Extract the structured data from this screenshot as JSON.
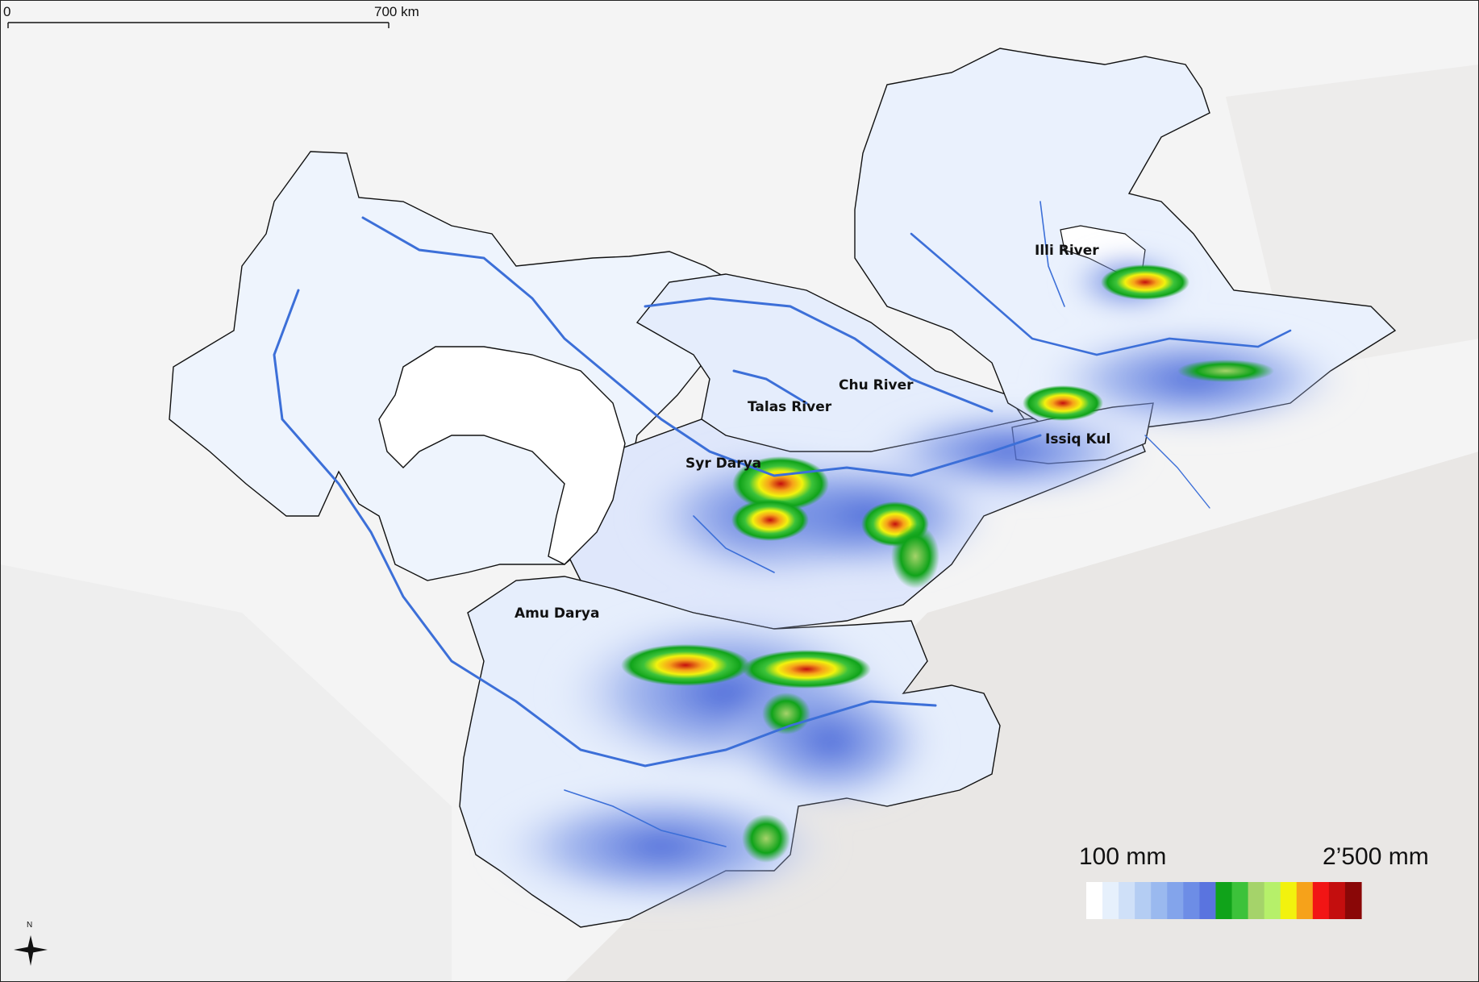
{
  "scale_bar": {
    "start_label": "0",
    "end_label": "700 km"
  },
  "north_arrow": {
    "label": "N",
    "icon": "compass-star-icon"
  },
  "labels": {
    "illi_river": "Illi River",
    "chu_river": "Chu River",
    "talas_river": "Talas River",
    "issiq_kul": "Issiq Kul",
    "syr_darya": "Syr Darya",
    "amu_darya": "Amu Darya"
  },
  "legend": {
    "min_label": "100 mm",
    "max_label": "2’500 mm",
    "colors": [
      "#ffffff",
      "#e6f0fc",
      "#cfe0f8",
      "#b4cdf3",
      "#9ab9ef",
      "#83a4eb",
      "#6d8de6",
      "#5a74df",
      "#10a31a",
      "#3cc23a",
      "#a5d36a",
      "#b6f06a",
      "#f2f20e",
      "#f6a21a",
      "#f21515",
      "#c40e0e",
      "#8a0707"
    ]
  },
  "colors": {
    "basin_fill": "#eef4fd",
    "river": "#3c6fd8",
    "boundary": "#111111",
    "relief_bg": "#f4f4f4"
  }
}
